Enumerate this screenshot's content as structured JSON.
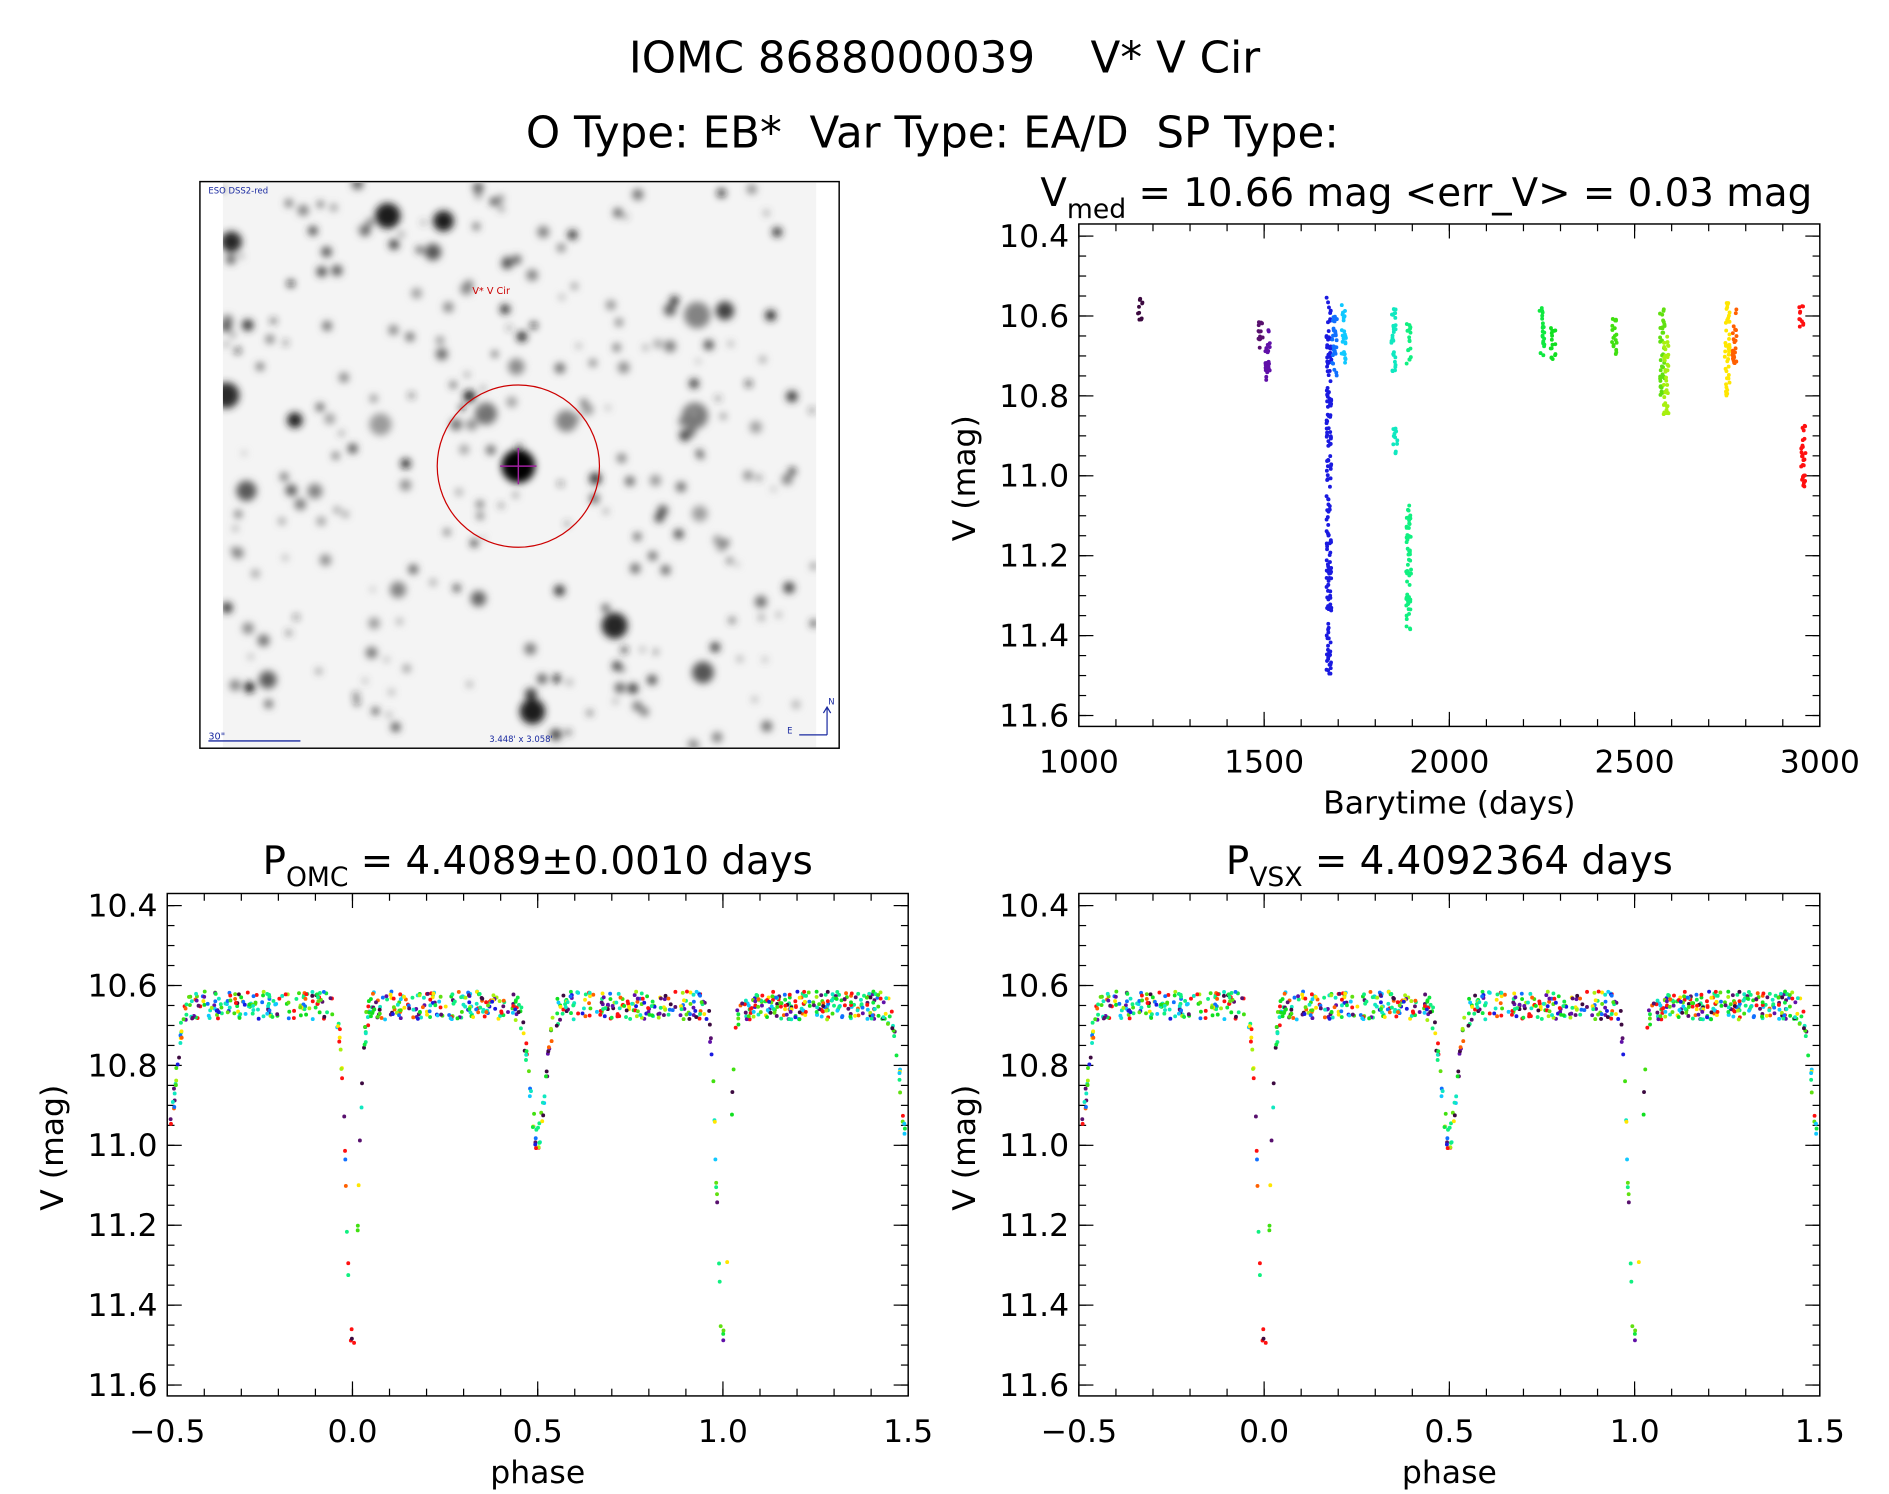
{
  "title": {
    "line1": "IOMC 8688000039    V* V Cir",
    "line2": "O Type: EB*  Var Type: EA/D  SP Type:"
  },
  "finder_image": {
    "survey_label": "ESO DSS2-red",
    "target_label": "V* V Cir",
    "scale_label": "30\"",
    "fov_label": "3.448' x 3.058'",
    "north_label": "N",
    "east_label": "E",
    "marker_color": "#cc0000"
  },
  "chart_data": [
    {
      "type": "scatter",
      "title_main": "V",
      "title_sub": "med",
      "title_rest": " = 10.66 mag <err_V> = 0.03 mag",
      "xlabel": "Barytime (days)",
      "ylabel": "V (mag)",
      "xlim": [
        1000,
        3000
      ],
      "ylim": [
        11.6,
        10.4
      ],
      "y_inverted": true,
      "xticks": [
        "1000",
        "1500",
        "2000",
        "2500",
        "3000"
      ],
      "yticks": [
        "10.4",
        "10.6",
        "10.8",
        "11.0",
        "11.2",
        "11.4",
        "11.6"
      ],
      "color_scale": "rainbow by time",
      "groups": [
        {
          "t": 1165,
          "mag": [
            10.55,
            10.61
          ],
          "color": "#3c0a40"
        },
        {
          "t": 1490,
          "mag": [
            10.61,
            10.68
          ],
          "color": "#58106e"
        },
        {
          "t": 1510,
          "mag": [
            10.62,
            10.76
          ],
          "color": "#6010a8"
        },
        {
          "t": 1675,
          "mag": [
            10.55,
            11.5
          ],
          "color": "#1a1ae0"
        },
        {
          "t": 1690,
          "mag": [
            10.6,
            10.76
          ],
          "color": "#1070ff"
        },
        {
          "t": 1715,
          "mag": [
            10.57,
            10.72
          ],
          "color": "#10c8ff"
        },
        {
          "t": 1850,
          "mag": [
            10.58,
            10.74
          ],
          "color": "#10e8c0"
        },
        {
          "t": 1853,
          "mag": [
            10.88,
            10.95
          ],
          "color": "#10e8c0"
        },
        {
          "t": 1890,
          "mag": [
            10.62,
            10.72
          ],
          "color": "#10f080"
        },
        {
          "t": 1890,
          "mag": [
            11.07,
            11.39
          ],
          "color": "#10f080"
        },
        {
          "t": 2250,
          "mag": [
            10.58,
            10.7
          ],
          "color": "#10e840"
        },
        {
          "t": 2280,
          "mag": [
            10.63,
            10.72
          ],
          "color": "#10e020"
        },
        {
          "t": 2445,
          "mag": [
            10.6,
            10.7
          ],
          "color": "#40e010"
        },
        {
          "t": 2575,
          "mag": [
            10.58,
            10.8
          ],
          "color": "#60e010"
        },
        {
          "t": 2585,
          "mag": [
            10.65,
            10.85
          ],
          "color": "#a8f010"
        },
        {
          "t": 2750,
          "mag": [
            10.55,
            10.8
          ],
          "color": "#ffe600"
        },
        {
          "t": 2770,
          "mag": [
            10.58,
            10.72
          ],
          "color": "#ff6000"
        },
        {
          "t": 2950,
          "mag": [
            10.57,
            10.63
          ],
          "color": "#ff1010"
        },
        {
          "t": 2955,
          "mag": [
            10.87,
            11.03
          ],
          "color": "#ff1010"
        }
      ]
    },
    {
      "type": "scatter",
      "title_main": "P",
      "title_sub": "OMC",
      "title_rest": " = 4.4089±0.0010 days",
      "xlabel": "phase",
      "ylabel": "V (mag)",
      "xlim": [
        -0.5,
        1.5
      ],
      "ylim": [
        11.6,
        10.4
      ],
      "y_inverted": true,
      "xticks": [
        "−0.5",
        "0.0",
        "0.5",
        "1.0",
        "1.5"
      ],
      "yticks": [
        "10.4",
        "10.6",
        "10.8",
        "11.0",
        "11.2",
        "11.4",
        "11.6"
      ],
      "light_curve": {
        "out_of_eclipse": 10.65,
        "primary_min": [
          0.0,
          11.5
        ],
        "secondary_min": [
          0.5,
          10.98
        ]
      }
    },
    {
      "type": "scatter",
      "title_main": "P",
      "title_sub": "VSX",
      "title_rest": " = 4.4092364 days",
      "xlabel": "phase",
      "ylabel": "V (mag)",
      "xlim": [
        -0.5,
        1.5
      ],
      "ylim": [
        11.6,
        10.4
      ],
      "y_inverted": true,
      "xticks": [
        "−0.5",
        "0.0",
        "0.5",
        "1.0",
        "1.5"
      ],
      "yticks": [
        "10.4",
        "10.6",
        "10.8",
        "11.0",
        "11.2",
        "11.4",
        "11.6"
      ],
      "light_curve": {
        "out_of_eclipse": 10.65,
        "primary_min": [
          0.0,
          11.5
        ],
        "secondary_min": [
          0.5,
          10.98
        ]
      }
    }
  ]
}
